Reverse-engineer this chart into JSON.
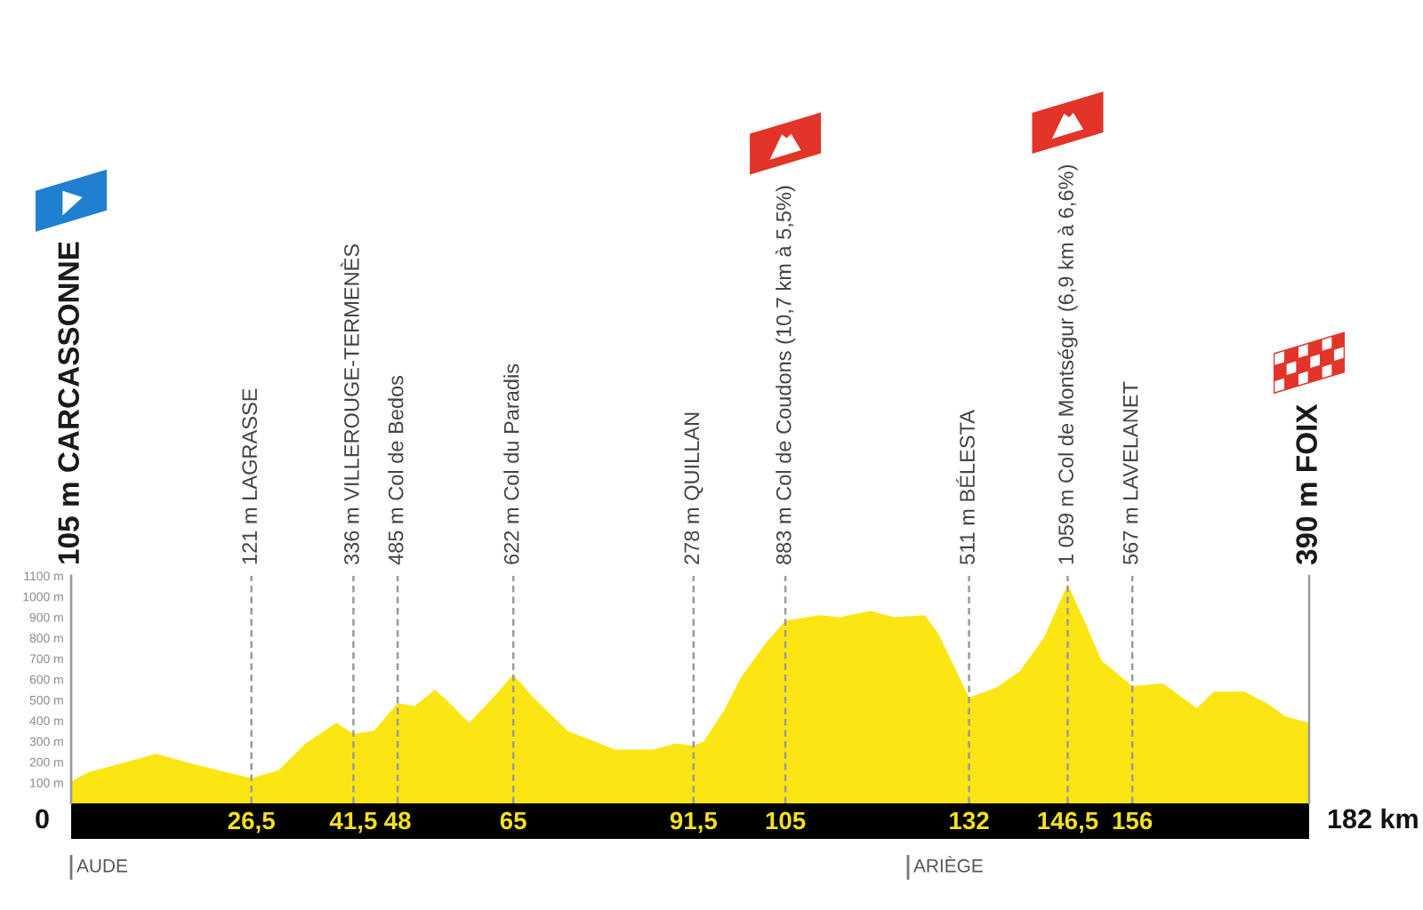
{
  "chart_data": {
    "type": "area",
    "color": "#fbe614",
    "x": [
      0,
      2.5,
      7,
      12.5,
      18,
      26.5,
      30.5,
      34.5,
      39,
      41.5,
      44.5,
      48,
      50.5,
      53.5,
      55.5,
      58.5,
      62,
      65,
      68,
      73,
      80,
      85.5,
      89,
      91.5,
      93,
      96,
      98.5,
      102,
      105,
      110,
      113,
      117.5,
      121,
      125.5,
      127.5,
      130,
      132,
      136,
      139.5,
      143,
      146.5,
      149,
      151.5,
      156,
      160.5,
      163,
      165.5,
      168,
      172.5,
      176,
      178.5,
      182
    ],
    "values": [
      105,
      150,
      190,
      240,
      190,
      121,
      160,
      290,
      390,
      336,
      350,
      485,
      470,
      550,
      490,
      390,
      510,
      622,
      510,
      350,
      260,
      260,
      290,
      278,
      300,
      450,
      610,
      770,
      883,
      910,
      900,
      930,
      900,
      910,
      820,
      650,
      511,
      560,
      640,
      800,
      1059,
      880,
      690,
      567,
      580,
      520,
      460,
      540,
      540,
      480,
      420,
      390
    ],
    "xlim": [
      0,
      182
    ],
    "ylim": [
      0,
      1100
    ],
    "xticks": [
      {
        "value": 26.5,
        "label": "26,5"
      },
      {
        "value": 41.5,
        "label": "41,5"
      },
      48,
      65,
      {
        "value": 91.5,
        "label": "91,5"
      },
      105,
      132,
      {
        "value": 146.5,
        "label": "146,5"
      },
      156
    ],
    "yticks": [
      {
        "value": 100,
        "label": "100 m"
      },
      {
        "value": 200,
        "label": "200 m"
      },
      {
        "value": 300,
        "label": "300 m"
      },
      {
        "value": 400,
        "label": "400 m"
      },
      {
        "value": 500,
        "label": "500 m"
      },
      {
        "value": 600,
        "label": "600 m"
      },
      {
        "value": 700,
        "label": "700 m"
      },
      {
        "value": 800,
        "label": "800 m"
      },
      {
        "value": 900,
        "label": "900 m"
      },
      {
        "value": 1000,
        "label": "1000 m"
      },
      {
        "value": 1100,
        "label": "1100 m"
      }
    ],
    "ref_lines": [
      {
        "axis": "x",
        "value": 0,
        "label": "105 m CARCASSONNE",
        "color": "#9a9a9a",
        "line_style": "solid"
      },
      {
        "axis": "x",
        "value": 26.5,
        "label": "121 m LAGRASSE",
        "color": "#9a9a9a",
        "line_style": "dashed"
      },
      {
        "axis": "x",
        "value": 41.5,
        "label": "336 m VILLEROUGE-TERMENÈS",
        "color": "#9a9a9a",
        "line_style": "dashed"
      },
      {
        "axis": "x",
        "value": 48,
        "label": "485 m Col de Bedos",
        "color": "#9a9a9a",
        "line_style": "dashed"
      },
      {
        "axis": "x",
        "value": 65,
        "label": "622 m Col du Paradis",
        "color": "#9a9a9a",
        "line_style": "dashed"
      },
      {
        "axis": "x",
        "value": 91.5,
        "label": "278 m QUILLAN",
        "color": "#9a9a9a",
        "line_style": "dashed"
      },
      {
        "axis": "x",
        "value": 105,
        "label": "883 m Col de Coudons (10,7 km à 5,5%)",
        "color": "#9a9a9a",
        "line_style": "dashed"
      },
      {
        "axis": "x",
        "value": 132,
        "label": "511 m BÉLESTA",
        "color": "#9a9a9a",
        "line_style": "dashed"
      },
      {
        "axis": "x",
        "value": 146.5,
        "label": "1 059 m Col de Montségur (6,9 km à 6,6%)",
        "color": "#9a9a9a",
        "line_style": "dashed"
      },
      {
        "axis": "x",
        "value": 156,
        "label": "567 m LAVELANET",
        "color": "#9a9a9a",
        "line_style": "dashed"
      },
      {
        "axis": "x",
        "value": 182,
        "label": "390 m FOIX",
        "color": "#9a9a9a",
        "line_style": "solid"
      }
    ],
    "annotations": [
      "0",
      "182 km",
      "AUDE",
      "ARIÈGE"
    ]
  }
}
